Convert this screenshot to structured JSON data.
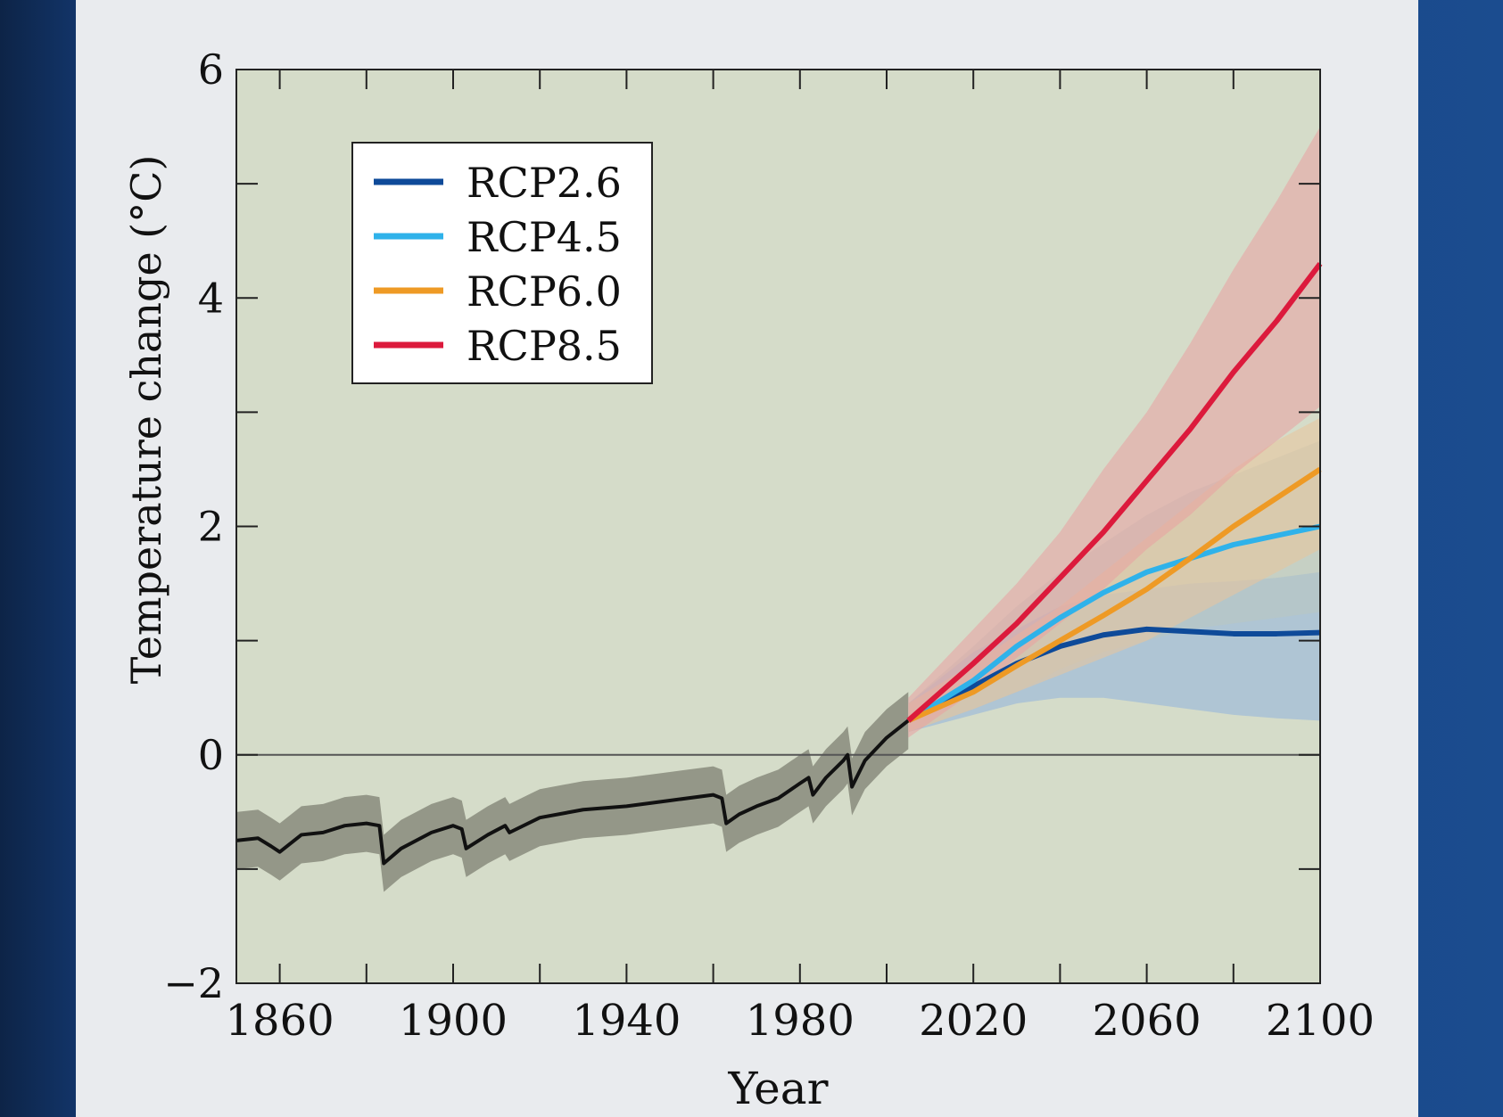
{
  "chart_data": {
    "type": "line",
    "title": "",
    "xlabel": "Year",
    "ylabel": "Temperature change (°C)",
    "xlim": [
      1850,
      2100
    ],
    "ylim": [
      -2,
      6
    ],
    "xticks": [
      1860,
      1900,
      1940,
      1980,
      2020,
      2060,
      2100
    ],
    "yticks": [
      -2,
      0,
      2,
      4,
      6
    ],
    "ytick_labels": [
      "−2",
      "0",
      "2",
      "4",
      "6"
    ],
    "grid": false,
    "zero_line": true,
    "legend_position": "top-left",
    "background_color": "#d5dcc9",
    "historical": {
      "color": "#111111",
      "band_color": "#7d8072",
      "x": [
        1850,
        1855,
        1858,
        1860,
        1865,
        1870,
        1875,
        1880,
        1883,
        1884,
        1888,
        1895,
        1900,
        1902,
        1903,
        1908,
        1912,
        1913,
        1920,
        1930,
        1940,
        1950,
        1960,
        1962,
        1963,
        1966,
        1970,
        1975,
        1980,
        1982,
        1983,
        1986,
        1990,
        1991,
        1992,
        1995,
        2000,
        2005
      ],
      "y": [
        -0.75,
        -0.73,
        -0.8,
        -0.85,
        -0.7,
        -0.68,
        -0.62,
        -0.6,
        -0.62,
        -0.95,
        -0.82,
        -0.68,
        -0.62,
        -0.65,
        -0.82,
        -0.7,
        -0.62,
        -0.68,
        -0.55,
        -0.48,
        -0.45,
        -0.4,
        -0.35,
        -0.38,
        -0.6,
        -0.52,
        -0.45,
        -0.38,
        -0.25,
        -0.2,
        -0.35,
        -0.2,
        -0.05,
        0.0,
        -0.28,
        -0.05,
        0.15,
        0.3
      ],
      "band": 0.25
    },
    "series": [
      {
        "name": "RCP2.6",
        "color": "#0e4a99",
        "band_color": "#8fb2dc",
        "x": [
          2005,
          2020,
          2030,
          2040,
          2050,
          2060,
          2070,
          2080,
          2090,
          2100
        ],
        "y": [
          0.3,
          0.6,
          0.8,
          0.95,
          1.05,
          1.1,
          1.08,
          1.06,
          1.06,
          1.07
        ],
        "lower": [
          0.2,
          0.35,
          0.45,
          0.5,
          0.5,
          0.45,
          0.4,
          0.35,
          0.32,
          0.3
        ],
        "upper": [
          0.45,
          0.9,
          1.1,
          1.3,
          1.4,
          1.45,
          1.5,
          1.52,
          1.55,
          1.6
        ]
      },
      {
        "name": "RCP4.5",
        "color": "#2fb2ea",
        "band_color": "#b9c6c0",
        "x": [
          2005,
          2020,
          2030,
          2040,
          2050,
          2060,
          2070,
          2080,
          2090,
          2100
        ],
        "y": [
          0.3,
          0.65,
          0.95,
          1.2,
          1.42,
          1.6,
          1.72,
          1.84,
          1.92,
          2.0
        ],
        "lower": [
          0.2,
          0.4,
          0.55,
          0.75,
          0.9,
          1.0,
          1.1,
          1.15,
          1.2,
          1.25
        ],
        "upper": [
          0.45,
          0.95,
          1.3,
          1.6,
          1.85,
          2.1,
          2.3,
          2.45,
          2.6,
          2.75
        ]
      },
      {
        "name": "RCP6.0",
        "color": "#ee9a25",
        "band_color": "#e9c59b",
        "x": [
          2005,
          2020,
          2030,
          2040,
          2050,
          2060,
          2070,
          2080,
          2090,
          2100
        ],
        "y": [
          0.3,
          0.55,
          0.78,
          1.0,
          1.22,
          1.45,
          1.72,
          2.0,
          2.25,
          2.5
        ],
        "lower": [
          0.2,
          0.4,
          0.55,
          0.7,
          0.85,
          1.0,
          1.2,
          1.4,
          1.6,
          1.8
        ],
        "upper": [
          0.45,
          0.8,
          1.05,
          1.3,
          1.6,
          1.9,
          2.2,
          2.5,
          2.75,
          2.95
        ]
      },
      {
        "name": "RCP8.5",
        "color": "#dc1a3c",
        "band_color": "#eaa0a0",
        "x": [
          2005,
          2020,
          2030,
          2040,
          2050,
          2060,
          2070,
          2080,
          2090,
          2100
        ],
        "y": [
          0.3,
          0.8,
          1.15,
          1.55,
          1.95,
          2.4,
          2.85,
          3.35,
          3.8,
          4.3
        ],
        "lower": [
          0.15,
          0.55,
          0.85,
          1.15,
          1.45,
          1.8,
          2.1,
          2.45,
          2.75,
          3.05
        ],
        "upper": [
          0.5,
          1.1,
          1.5,
          1.95,
          2.5,
          3.0,
          3.6,
          4.25,
          4.85,
          5.5
        ]
      }
    ]
  }
}
